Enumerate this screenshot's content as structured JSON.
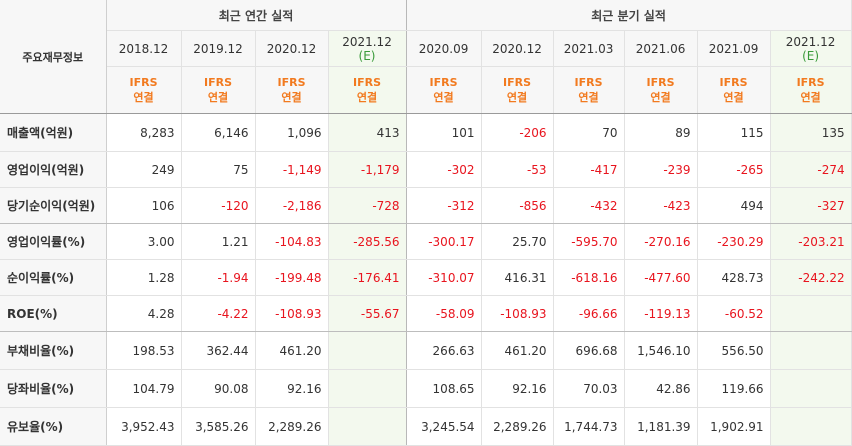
{
  "table": {
    "corner_label": "주요재무정보",
    "groups": [
      {
        "label": "최근 연간 실적"
      },
      {
        "label": "최근 분기 실적"
      }
    ],
    "columns": [
      {
        "date": "2018.12",
        "est": "",
        "basis1": "IFRS",
        "basis2": "연결",
        "estimate": false
      },
      {
        "date": "2019.12",
        "est": "",
        "basis1": "IFRS",
        "basis2": "연결",
        "estimate": false
      },
      {
        "date": "2020.12",
        "est": "",
        "basis1": "IFRS",
        "basis2": "연결",
        "estimate": false
      },
      {
        "date": "2021.12",
        "est": "(E)",
        "basis1": "IFRS",
        "basis2": "연결",
        "estimate": true
      },
      {
        "date": "2020.09",
        "est": "",
        "basis1": "IFRS",
        "basis2": "연결",
        "estimate": false
      },
      {
        "date": "2020.12",
        "est": "",
        "basis1": "IFRS",
        "basis2": "연결",
        "estimate": false
      },
      {
        "date": "2021.03",
        "est": "",
        "basis1": "IFRS",
        "basis2": "연결",
        "estimate": false
      },
      {
        "date": "2021.06",
        "est": "",
        "basis1": "IFRS",
        "basis2": "연결",
        "estimate": false
      },
      {
        "date": "2021.09",
        "est": "",
        "basis1": "IFRS",
        "basis2": "연결",
        "estimate": false
      },
      {
        "date": "2021.12",
        "est": "(E)",
        "basis1": "IFRS",
        "basis2": "연결",
        "estimate": true
      }
    ],
    "rows": [
      {
        "label": "매출액(억원)",
        "values": [
          "8,283",
          "6,146",
          "1,096",
          "413",
          "101",
          "-206",
          "70",
          "89",
          "115",
          "135"
        ]
      },
      {
        "label": "영업이익(억원)",
        "values": [
          "249",
          "75",
          "-1,149",
          "-1,179",
          "-302",
          "-53",
          "-417",
          "-239",
          "-265",
          "-274"
        ]
      },
      {
        "label": "당기순이익(억원)",
        "values": [
          "106",
          "-120",
          "-2,186",
          "-728",
          "-312",
          "-856",
          "-432",
          "-423",
          "494",
          "-327"
        ]
      },
      {
        "label": "영업이익률(%)",
        "values": [
          "3.00",
          "1.21",
          "-104.83",
          "-285.56",
          "-300.17",
          "25.70",
          "-595.70",
          "-270.16",
          "-230.29",
          "-203.21"
        ]
      },
      {
        "label": "순이익률(%)",
        "values": [
          "1.28",
          "-1.94",
          "-199.48",
          "-176.41",
          "-310.07",
          "416.31",
          "-618.16",
          "-477.60",
          "428.73",
          "-242.22"
        ]
      },
      {
        "label": "ROE(%)",
        "values": [
          "4.28",
          "-4.22",
          "-108.93",
          "-55.67",
          "-58.09",
          "-108.93",
          "-96.66",
          "-119.13",
          "-60.52",
          ""
        ]
      },
      {
        "label": "부채비율(%)",
        "values": [
          "198.53",
          "362.44",
          "461.20",
          "",
          "266.63",
          "461.20",
          "696.68",
          "1,546.10",
          "556.50",
          ""
        ]
      },
      {
        "label": "당좌비율(%)",
        "values": [
          "104.79",
          "90.08",
          "92.16",
          "",
          "108.65",
          "92.16",
          "70.03",
          "42.86",
          "119.66",
          ""
        ]
      },
      {
        "label": "유보율(%)",
        "values": [
          "3,952.43",
          "3,585.26",
          "2,289.26",
          "",
          "3,245.54",
          "2,289.26",
          "1,744.73",
          "1,181.39",
          "1,902.91",
          ""
        ]
      }
    ]
  },
  "colors": {
    "negative": "#e8141e",
    "basis": "#f27a1f",
    "estimate_label": "#3a9b3a",
    "estimate_bg": "#f3f9ee",
    "header_bg": "#f7f7f7"
  }
}
